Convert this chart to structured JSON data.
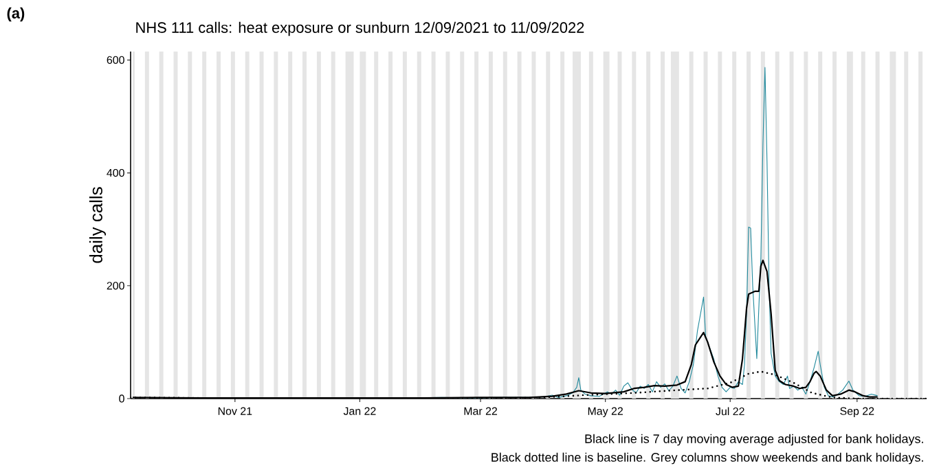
{
  "chart_data": {
    "type": "line",
    "title": "NHS 111 calls: heat exposure or sunburn 12/09/2021 to 11/09/2022",
    "ylabel": "daily calls",
    "annotations": [
      "(a)",
      "Black line is 7 day moving average adjusted for bank holidays.",
      "Black dotted line is baseline. Grey columns show weekends and bank holidays."
    ],
    "xlim": [
      "2021-09-11",
      "2022-10-05"
    ],
    "xticks": [
      {
        "value": "2021-11-01",
        "label": "Nov 21"
      },
      {
        "value": "2022-01-01",
        "label": "Jan 22"
      },
      {
        "value": "2022-03-01",
        "label": "Mar 22"
      },
      {
        "value": "2022-05-01",
        "label": "May 22"
      },
      {
        "value": "2022-07-01",
        "label": "Jul 22"
      },
      {
        "value": "2022-09-01",
        "label": "Sep 22"
      }
    ],
    "ylim": [
      0,
      615
    ],
    "yticks": [
      0,
      200,
      400,
      600
    ],
    "series": [
      {
        "color": "#20899c",
        "line_style": "solid",
        "x": [
          "2022-01-20",
          "2022-02-10",
          "2022-02-25",
          "2022-03-10",
          "2022-03-25",
          "2022-04-01",
          "2022-04-05",
          "2022-04-08",
          "2022-04-12",
          "2022-04-15",
          "2022-04-17",
          "2022-04-18",
          "2022-04-19",
          "2022-04-21",
          "2022-04-24",
          "2022-04-28",
          "2022-05-02",
          "2022-05-04",
          "2022-05-06",
          "2022-05-08",
          "2022-05-10",
          "2022-05-12",
          "2022-05-14",
          "2022-05-16",
          "2022-05-18",
          "2022-05-20",
          "2022-05-22",
          "2022-05-24",
          "2022-05-26",
          "2022-05-28",
          "2022-05-30",
          "2022-06-01",
          "2022-06-03",
          "2022-06-05",
          "2022-06-07",
          "2022-06-09",
          "2022-06-11",
          "2022-06-13",
          "2022-06-15",
          "2022-06-16",
          "2022-06-18",
          "2022-06-19",
          "2022-06-21",
          "2022-06-23",
          "2022-06-25",
          "2022-06-27",
          "2022-06-29",
          "2022-07-01",
          "2022-07-03",
          "2022-07-05",
          "2022-07-07",
          "2022-07-08",
          "2022-07-09",
          "2022-07-10",
          "2022-07-11",
          "2022-07-12",
          "2022-07-14",
          "2022-07-16",
          "2022-07-17",
          "2022-07-18",
          "2022-07-19",
          "2022-07-20",
          "2022-07-21",
          "2022-07-23",
          "2022-07-25",
          "2022-07-27",
          "2022-07-29",
          "2022-07-30",
          "2022-08-01",
          "2022-08-03",
          "2022-08-05",
          "2022-08-07",
          "2022-08-09",
          "2022-08-11",
          "2022-08-13",
          "2022-08-14",
          "2022-08-16",
          "2022-08-18",
          "2022-08-20",
          "2022-08-22",
          "2022-08-25",
          "2022-08-28",
          "2022-08-30",
          "2022-09-02",
          "2022-09-05",
          "2022-09-08",
          "2022-09-11"
        ],
        "values": [
          1,
          2,
          1,
          2,
          2,
          3,
          6,
          2,
          5,
          10,
          20,
          37,
          15,
          8,
          5,
          4,
          12,
          8,
          15,
          6,
          22,
          28,
          16,
          10,
          22,
          18,
          25,
          12,
          30,
          20,
          26,
          14,
          22,
          40,
          18,
          10,
          30,
          60,
          120,
          140,
          180,
          110,
          90,
          70,
          40,
          20,
          12,
          20,
          18,
          30,
          25,
          60,
          150,
          304,
          302,
          200,
          71,
          250,
          450,
          587,
          420,
          200,
          80,
          40,
          30,
          25,
          40,
          18,
          22,
          15,
          20,
          8,
          30,
          55,
          84,
          60,
          20,
          5,
          3,
          6,
          15,
          31,
          15,
          5,
          4,
          8,
          5
        ]
      },
      {
        "color": "#000000",
        "line_style": "solid",
        "x": [
          "2021-09-12",
          "2021-10-15",
          "2021-12-01",
          "2022-02-01",
          "2022-03-01",
          "2022-03-25",
          "2022-04-05",
          "2022-04-12",
          "2022-04-18",
          "2022-04-24",
          "2022-05-01",
          "2022-05-10",
          "2022-05-15",
          "2022-05-20",
          "2022-05-25",
          "2022-05-30",
          "2022-06-05",
          "2022-06-09",
          "2022-06-12",
          "2022-06-14",
          "2022-06-18",
          "2022-06-20",
          "2022-06-23",
          "2022-06-26",
          "2022-06-29",
          "2022-07-02",
          "2022-07-05",
          "2022-07-07",
          "2022-07-09",
          "2022-07-10",
          "2022-07-13",
          "2022-07-15",
          "2022-07-16",
          "2022-07-17",
          "2022-07-19",
          "2022-07-21",
          "2022-07-23",
          "2022-07-25",
          "2022-07-28",
          "2022-08-01",
          "2022-08-04",
          "2022-08-07",
          "2022-08-09",
          "2022-08-11",
          "2022-08-12",
          "2022-08-14",
          "2022-08-17",
          "2022-08-20",
          "2022-08-24",
          "2022-08-28",
          "2022-08-31",
          "2022-09-04",
          "2022-09-07",
          "2022-09-11"
        ],
        "values": [
          2,
          1,
          1,
          1,
          2,
          2,
          4,
          8,
          14,
          10,
          9,
          12,
          18,
          20,
          23,
          22,
          24,
          30,
          60,
          95,
          117,
          100,
          65,
          40,
          25,
          20,
          22,
          70,
          160,
          185,
          190,
          190,
          235,
          245,
          225,
          150,
          50,
          32,
          25,
          22,
          18,
          20,
          30,
          45,
          48,
          40,
          15,
          5,
          8,
          15,
          12,
          5,
          3,
          3
        ]
      },
      {
        "color": "#000000",
        "line_style": "dotted",
        "x": [
          "2021-09-11",
          "2021-10-15",
          "2021-12-01",
          "2022-03-01",
          "2022-04-01",
          "2022-04-20",
          "2022-05-15",
          "2022-06-01",
          "2022-06-20",
          "2022-07-01",
          "2022-07-10",
          "2022-07-16",
          "2022-07-23",
          "2022-08-01",
          "2022-08-10",
          "2022-08-20",
          "2022-09-01",
          "2022-10-05"
        ],
        "values": [
          2,
          1,
          0,
          0,
          2,
          6,
          10,
          14,
          18,
          28,
          44,
          48,
          42,
          28,
          10,
          2,
          0,
          0
        ]
      }
    ],
    "bands": [
      {
        "axis": "x",
        "from": "2021-09-12",
        "to": "2021-09-13",
        "color": "#e5e5e5"
      },
      {
        "axis": "x",
        "from": "2021-09-18",
        "to": "2021-09-20",
        "color": "#e5e5e5"
      },
      {
        "axis": "x",
        "from": "2021-09-25",
        "to": "2021-09-27",
        "color": "#e5e5e5"
      },
      {
        "axis": "x",
        "from": "2021-10-02",
        "to": "2021-10-04",
        "color": "#e5e5e5"
      },
      {
        "axis": "x",
        "from": "2021-10-09",
        "to": "2021-10-11",
        "color": "#e5e5e5"
      },
      {
        "axis": "x",
        "from": "2021-10-16",
        "to": "2021-10-18",
        "color": "#e5e5e5"
      },
      {
        "axis": "x",
        "from": "2021-10-23",
        "to": "2021-10-25",
        "color": "#e5e5e5"
      },
      {
        "axis": "x",
        "from": "2021-10-30",
        "to": "2021-11-01",
        "color": "#e5e5e5"
      },
      {
        "axis": "x",
        "from": "2021-11-06",
        "to": "2021-11-08",
        "color": "#e5e5e5"
      },
      {
        "axis": "x",
        "from": "2021-11-13",
        "to": "2021-11-15",
        "color": "#e5e5e5"
      },
      {
        "axis": "x",
        "from": "2021-11-20",
        "to": "2021-11-22",
        "color": "#e5e5e5"
      },
      {
        "axis": "x",
        "from": "2021-11-27",
        "to": "2021-11-29",
        "color": "#e5e5e5"
      },
      {
        "axis": "x",
        "from": "2021-12-04",
        "to": "2021-12-06",
        "color": "#e5e5e5"
      },
      {
        "axis": "x",
        "from": "2021-12-11",
        "to": "2021-12-13",
        "color": "#e5e5e5"
      },
      {
        "axis": "x",
        "from": "2021-12-18",
        "to": "2021-12-20",
        "color": "#e5e5e5"
      },
      {
        "axis": "x",
        "from": "2021-12-25",
        "to": "2021-12-29",
        "color": "#e5e5e5"
      },
      {
        "axis": "x",
        "from": "2022-01-01",
        "to": "2022-01-04",
        "color": "#e5e5e5"
      },
      {
        "axis": "x",
        "from": "2022-01-08",
        "to": "2022-01-10",
        "color": "#e5e5e5"
      },
      {
        "axis": "x",
        "from": "2022-01-15",
        "to": "2022-01-17",
        "color": "#e5e5e5"
      },
      {
        "axis": "x",
        "from": "2022-01-22",
        "to": "2022-01-24",
        "color": "#e5e5e5"
      },
      {
        "axis": "x",
        "from": "2022-01-29",
        "to": "2022-01-31",
        "color": "#e5e5e5"
      },
      {
        "axis": "x",
        "from": "2022-02-05",
        "to": "2022-02-07",
        "color": "#e5e5e5"
      },
      {
        "axis": "x",
        "from": "2022-02-12",
        "to": "2022-02-14",
        "color": "#e5e5e5"
      },
      {
        "axis": "x",
        "from": "2022-02-19",
        "to": "2022-02-21",
        "color": "#e5e5e5"
      },
      {
        "axis": "x",
        "from": "2022-02-26",
        "to": "2022-02-28",
        "color": "#e5e5e5"
      },
      {
        "axis": "x",
        "from": "2022-03-05",
        "to": "2022-03-07",
        "color": "#e5e5e5"
      },
      {
        "axis": "x",
        "from": "2022-03-12",
        "to": "2022-03-14",
        "color": "#e5e5e5"
      },
      {
        "axis": "x",
        "from": "2022-03-19",
        "to": "2022-03-21",
        "color": "#e5e5e5"
      },
      {
        "axis": "x",
        "from": "2022-03-26",
        "to": "2022-03-28",
        "color": "#e5e5e5"
      },
      {
        "axis": "x",
        "from": "2022-04-02",
        "to": "2022-04-04",
        "color": "#e5e5e5"
      },
      {
        "axis": "x",
        "from": "2022-04-09",
        "to": "2022-04-11",
        "color": "#e5e5e5"
      },
      {
        "axis": "x",
        "from": "2022-04-15",
        "to": "2022-04-19",
        "color": "#e5e5e5"
      },
      {
        "axis": "x",
        "from": "2022-04-23",
        "to": "2022-04-25",
        "color": "#e5e5e5"
      },
      {
        "axis": "x",
        "from": "2022-04-30",
        "to": "2022-05-03",
        "color": "#e5e5e5"
      },
      {
        "axis": "x",
        "from": "2022-05-07",
        "to": "2022-05-09",
        "color": "#e5e5e5"
      },
      {
        "axis": "x",
        "from": "2022-05-14",
        "to": "2022-05-16",
        "color": "#e5e5e5"
      },
      {
        "axis": "x",
        "from": "2022-05-21",
        "to": "2022-05-23",
        "color": "#e5e5e5"
      },
      {
        "axis": "x",
        "from": "2022-05-28",
        "to": "2022-05-30",
        "color": "#e5e5e5"
      },
      {
        "axis": "x",
        "from": "2022-06-02",
        "to": "2022-06-06",
        "color": "#e5e5e5"
      },
      {
        "axis": "x",
        "from": "2022-06-11",
        "to": "2022-06-13",
        "color": "#e5e5e5"
      },
      {
        "axis": "x",
        "from": "2022-06-18",
        "to": "2022-06-20",
        "color": "#e5e5e5"
      },
      {
        "axis": "x",
        "from": "2022-06-25",
        "to": "2022-06-27",
        "color": "#e5e5e5"
      },
      {
        "axis": "x",
        "from": "2022-07-02",
        "to": "2022-07-04",
        "color": "#e5e5e5"
      },
      {
        "axis": "x",
        "from": "2022-07-09",
        "to": "2022-07-11",
        "color": "#e5e5e5"
      },
      {
        "axis": "x",
        "from": "2022-07-16",
        "to": "2022-07-18",
        "color": "#e5e5e5"
      },
      {
        "axis": "x",
        "from": "2022-07-23",
        "to": "2022-07-25",
        "color": "#e5e5e5"
      },
      {
        "axis": "x",
        "from": "2022-07-30",
        "to": "2022-08-01",
        "color": "#e5e5e5"
      },
      {
        "axis": "x",
        "from": "2022-08-06",
        "to": "2022-08-08",
        "color": "#e5e5e5"
      },
      {
        "axis": "x",
        "from": "2022-08-13",
        "to": "2022-08-15",
        "color": "#e5e5e5"
      },
      {
        "axis": "x",
        "from": "2022-08-20",
        "to": "2022-08-22",
        "color": "#e5e5e5"
      },
      {
        "axis": "x",
        "from": "2022-08-27",
        "to": "2022-08-30",
        "color": "#e5e5e5"
      },
      {
        "axis": "x",
        "from": "2022-09-03",
        "to": "2022-09-05",
        "color": "#e5e5e5"
      },
      {
        "axis": "x",
        "from": "2022-09-10",
        "to": "2022-09-12",
        "color": "#e5e5e5"
      },
      {
        "axis": "x",
        "from": "2022-09-17",
        "to": "2022-09-20",
        "color": "#e5e5e5"
      },
      {
        "axis": "x",
        "from": "2022-09-24",
        "to": "2022-09-26",
        "color": "#e5e5e5"
      },
      {
        "axis": "x",
        "from": "2022-10-01",
        "to": "2022-10-03",
        "color": "#e5e5e5"
      }
    ]
  }
}
